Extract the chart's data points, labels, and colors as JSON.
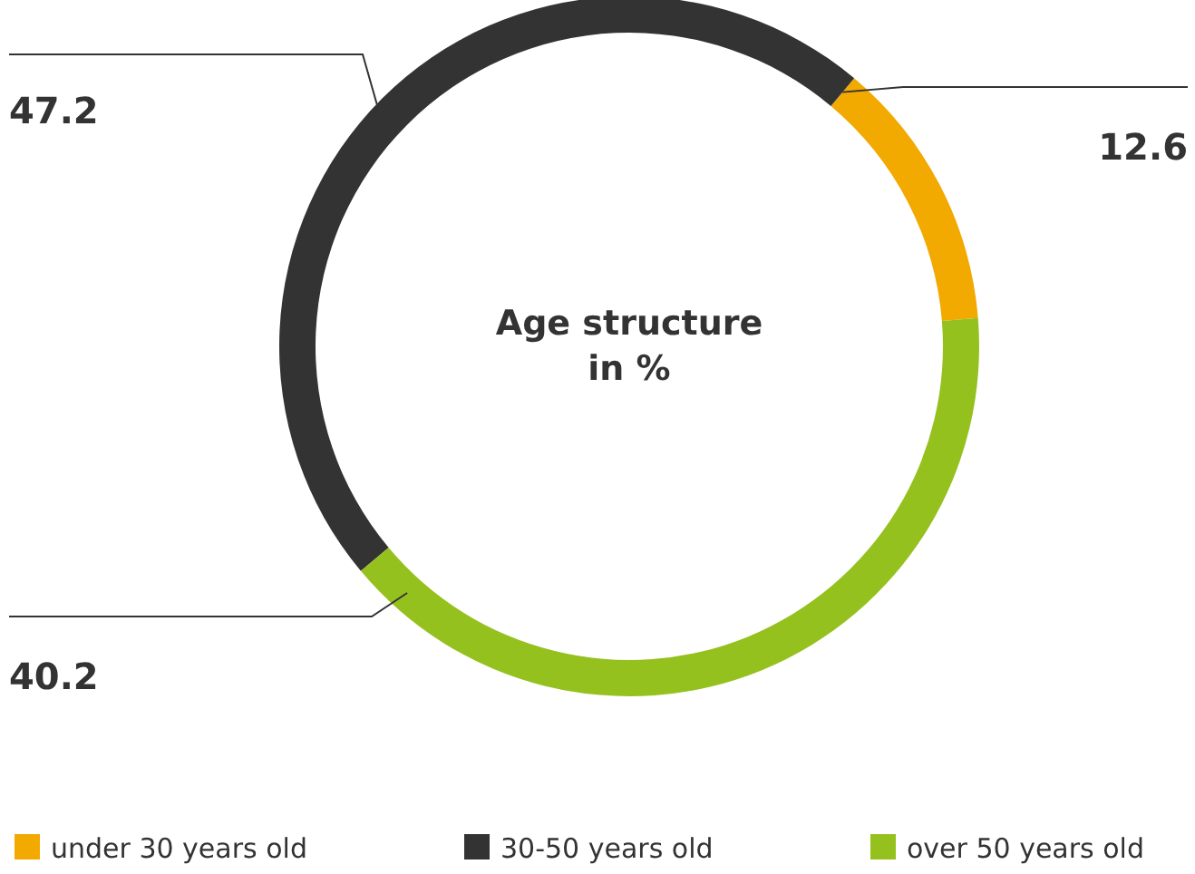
{
  "chart_data": {
    "type": "donut",
    "title": "Age structure\nin %",
    "categories": [
      "under 30 years old",
      "30-50 years old",
      "over 50 years old"
    ],
    "values": [
      12.6,
      47.2,
      40.2
    ],
    "colors": [
      "#f2a900",
      "#333333",
      "#95c11f"
    ],
    "data_labels": true,
    "legend": "bottom"
  }
}
